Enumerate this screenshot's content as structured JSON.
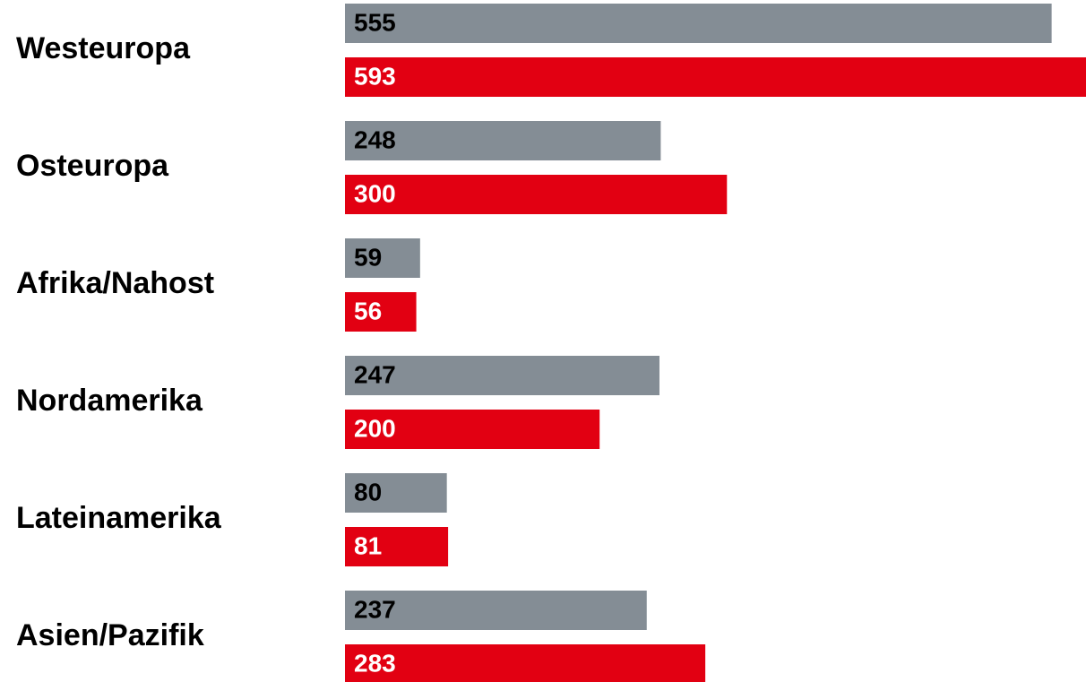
{
  "chart_data": {
    "type": "barh",
    "categories": [
      "Westeuropa",
      "Osteuropa",
      "Afrika/Nahost",
      "Nordamerika",
      "Lateinamerika",
      "Asien/Pazifik"
    ],
    "series": [
      {
        "color": "#848d95",
        "label_color": "#000000",
        "values": [
          555,
          248,
          59,
          247,
          80,
          237
        ]
      },
      {
        "color": "#e20012",
        "label_color": "#ffffff",
        "values": [
          593,
          300,
          56,
          200,
          81,
          283
        ]
      }
    ],
    "xlim": [
      0,
      582
    ]
  }
}
